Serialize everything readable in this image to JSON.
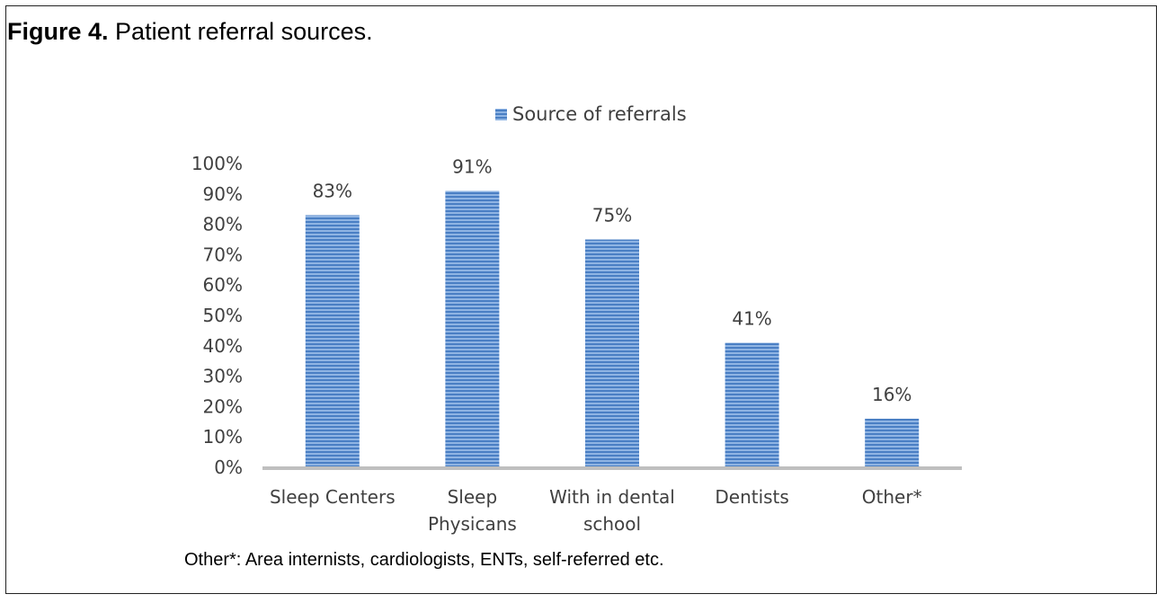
{
  "figure": {
    "label": "Figure 4.",
    "title": "Patient referral sources."
  },
  "footnote": "Other*: Area internists, cardiologists, ENTs, self-referred etc.",
  "chart_data": {
    "type": "bar",
    "title": "",
    "legend": {
      "position": "top",
      "entries": [
        "Source of referrals"
      ]
    },
    "categories": [
      [
        "Sleep Centers"
      ],
      [
        "Sleep",
        "Physicans"
      ],
      [
        "With in dental",
        "school"
      ],
      [
        "Dentists"
      ],
      [
        "Other*"
      ]
    ],
    "series": [
      {
        "name": "Source of referrals",
        "values": [
          83,
          91,
          75,
          41,
          16
        ],
        "color": "#5b8fd0"
      }
    ],
    "data_labels": [
      "83%",
      "91%",
      "75%",
      "41%",
      "16%"
    ],
    "yticks": [
      "0%",
      "10%",
      "20%",
      "30%",
      "40%",
      "50%",
      "60%",
      "70%",
      "80%",
      "90%",
      "100%"
    ],
    "ylim": [
      0,
      100
    ],
    "xlabel": "",
    "ylabel": "",
    "grid": false,
    "bar_pattern": "horizontal-stripes"
  }
}
